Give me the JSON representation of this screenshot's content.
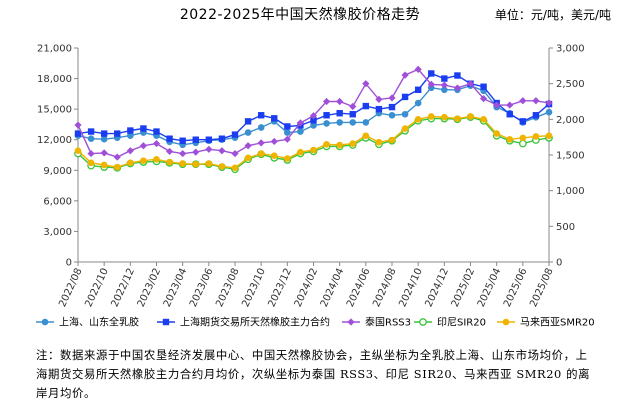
{
  "chart_data": {
    "type": "line",
    "title": "2022-2025年中国天然橡胶价格走势",
    "unit_label": "单位：元/吨，美元/吨",
    "left_ylim": [
      0,
      21000
    ],
    "right_ylim": [
      0,
      3000
    ],
    "left_yticks": [
      "0",
      "3,000",
      "6,000",
      "9,000",
      "12,000",
      "15,000",
      "18,000",
      "21,000"
    ],
    "right_yticks": [
      "0",
      "500",
      "1,000",
      "1,500",
      "2,000",
      "2,500",
      "3,000"
    ],
    "x_tick_labels": [
      "2022/08",
      "2022/10",
      "2022/12",
      "2023/02",
      "2023/04",
      "2023/06",
      "2023/08",
      "2023/10",
      "2023/12",
      "2024/02",
      "2024/04",
      "2024/06",
      "2024/08",
      "2024/10",
      "2024/12",
      "2025/02",
      "2025/04",
      "2025/06",
      "2025/08"
    ],
    "x": [
      "2022/08",
      "2022/09",
      "2022/10",
      "2022/11",
      "2022/12",
      "2023/01",
      "2023/02",
      "2023/03",
      "2023/04",
      "2023/05",
      "2023/06",
      "2023/07",
      "2023/08",
      "2023/09",
      "2023/10",
      "2023/11",
      "2023/12",
      "2024/01",
      "2024/02",
      "2024/03",
      "2024/04",
      "2024/05",
      "2024/06",
      "2024/07",
      "2024/08",
      "2024/09",
      "2024/10",
      "2024/11",
      "2024/12",
      "2025/01",
      "2025/02",
      "2025/03",
      "2025/04",
      "2025/05",
      "2025/06",
      "2025/07",
      "2025/08"
    ],
    "grid": false,
    "legend_position": "bottom",
    "series": [
      {
        "name": "上海、山东全乳胶",
        "axis": "left",
        "color": "#3a8fd0",
        "marker": "circle",
        "values": [
          12400,
          12100,
          12050,
          12200,
          12400,
          12700,
          12400,
          11800,
          11500,
          11700,
          11900,
          12000,
          12200,
          12700,
          13200,
          13800,
          12700,
          12800,
          13400,
          13600,
          13700,
          13700,
          13700,
          14600,
          14400,
          14500,
          15600,
          17100,
          16900,
          16900,
          17300,
          16800,
          15200,
          14600,
          13700,
          14200,
          14700
        ]
      },
      {
        "name": "上海期货交易所天然橡胶主力合约",
        "axis": "left",
        "color": "#1a3df0",
        "marker": "square",
        "values": [
          12600,
          12800,
          12600,
          12600,
          12900,
          13100,
          12800,
          12100,
          11900,
          12000,
          12000,
          12100,
          12500,
          13800,
          14400,
          14100,
          13300,
          13400,
          13900,
          14400,
          14600,
          14500,
          15300,
          15000,
          15200,
          16200,
          16900,
          18500,
          18000,
          18300,
          17500,
          17200,
          15600,
          14500,
          13800,
          14400,
          15500
        ]
      },
      {
        "name": "泰国RSS3",
        "axis": "right",
        "color": "#a050d8",
        "marker": "diamond",
        "values": [
          1920,
          1520,
          1530,
          1470,
          1560,
          1630,
          1660,
          1550,
          1520,
          1540,
          1580,
          1560,
          1520,
          1630,
          1670,
          1690,
          1720,
          1950,
          2050,
          2250,
          2250,
          2180,
          2500,
          2280,
          2300,
          2620,
          2700,
          2490,
          2480,
          2440,
          2500,
          2290,
          2200,
          2200,
          2260,
          2260,
          2230
        ]
      },
      {
        "name": "印尼SIR20",
        "axis": "right",
        "color": "#3cc43c",
        "marker": "hollow-circle",
        "values": [
          1520,
          1350,
          1330,
          1320,
          1380,
          1400,
          1410,
          1390,
          1370,
          1370,
          1370,
          1330,
          1300,
          1440,
          1510,
          1460,
          1430,
          1520,
          1550,
          1620,
          1620,
          1640,
          1740,
          1650,
          1700,
          1840,
          1980,
          2010,
          2010,
          2000,
          2030,
          1980,
          1770,
          1700,
          1660,
          1710,
          1740
        ]
      },
      {
        "name": "马来西亚SMR20",
        "axis": "right",
        "color": "#f0b400",
        "marker": "circle",
        "values": [
          1560,
          1390,
          1360,
          1330,
          1390,
          1420,
          1440,
          1400,
          1380,
          1370,
          1380,
          1340,
          1320,
          1460,
          1520,
          1490,
          1450,
          1540,
          1570,
          1650,
          1640,
          1660,
          1770,
          1680,
          1710,
          1870,
          2000,
          2040,
          2030,
          2010,
          2040,
          2000,
          1800,
          1720,
          1740,
          1760,
          1770
        ]
      }
    ]
  },
  "note": "注：数据来源于中国农垦经济发展中心、中国天然橡胶协会，主纵坐标为全乳胶上海、山东市场均价，上海期货交易所天然橡胶主力合约月均价，次纵坐标为泰国 RSS3、印尼 SIR20、马来西亚 SMR20 的离岸月均价。"
}
